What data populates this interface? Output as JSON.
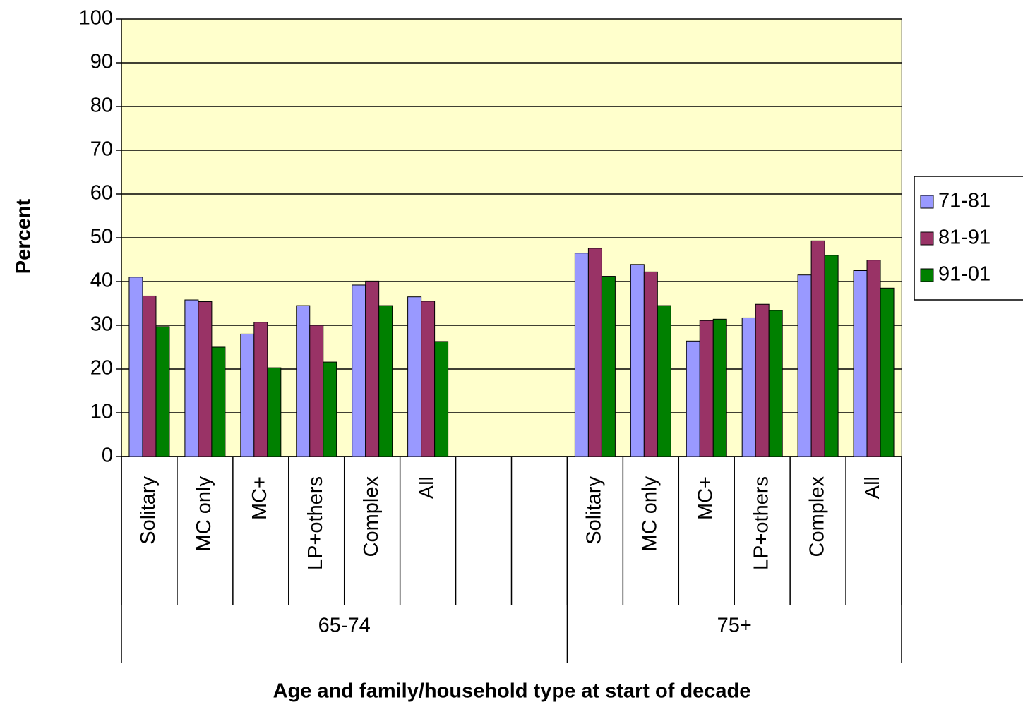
{
  "chart_data": {
    "type": "bar",
    "y_label": "Percent",
    "x_label": "Age and family/household type at start of decade",
    "categories": [
      "Solitary",
      "MC only",
      "MC+",
      "LP+others",
      "Complex",
      "All",
      null,
      null,
      "Solitary",
      "MC only",
      "MC+",
      "LP+others",
      "Complex",
      "All"
    ],
    "groups": [
      {
        "label": "65-74",
        "size": 8
      },
      {
        "label": "75+",
        "size": 6
      }
    ],
    "series": [
      {
        "name": "71-81",
        "color": "#9999ff",
        "values": [
          41,
          35.8,
          28,
          34.5,
          39.2,
          36.5,
          null,
          null,
          46.5,
          43.9,
          26.4,
          31.7,
          41.5,
          42.5
        ]
      },
      {
        "name": "81-91",
        "color": "#993366",
        "values": [
          36.7,
          35.4,
          30.7,
          30,
          40.1,
          35.5,
          null,
          null,
          47.6,
          42.2,
          31.1,
          34.8,
          49.3,
          44.9
        ]
      },
      {
        "name": "91-01",
        "color": "#008000",
        "values": [
          29.7,
          25,
          20.3,
          21.6,
          34.5,
          26.3,
          null,
          null,
          41.2,
          34.5,
          31.4,
          33.4,
          46,
          38.5
        ]
      }
    ],
    "ylim": [
      0,
      100
    ],
    "yticks": [
      0,
      10,
      20,
      30,
      40,
      50,
      60,
      70,
      80,
      90,
      100
    ],
    "grid": true,
    "legend": "right",
    "plot_background": "#ffffcc"
  }
}
